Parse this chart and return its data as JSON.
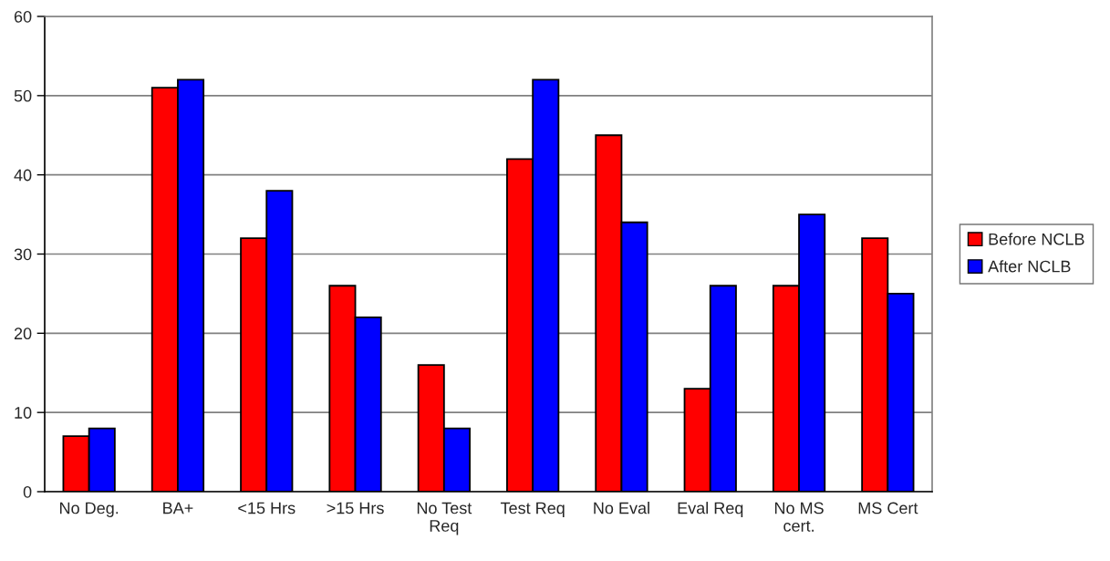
{
  "chart_data": {
    "type": "bar",
    "categories": [
      "No Deg.",
      "BA+",
      "<15 Hrs",
      ">15 Hrs",
      "No Test\nReq",
      "Test Req",
      "No Eval",
      "Eval Req",
      "No MS\ncert.",
      "MS Cert"
    ],
    "series": [
      {
        "name": "Before NCLB",
        "color": "#ff0000",
        "values": [
          7,
          51,
          32,
          26,
          16,
          42,
          45,
          13,
          26,
          32
        ]
      },
      {
        "name": "After NCLB",
        "color": "#0000ff",
        "values": [
          8,
          52,
          38,
          22,
          8,
          52,
          34,
          26,
          35,
          25
        ]
      }
    ],
    "ylim": [
      0,
      60
    ],
    "yticks": [
      0,
      10,
      20,
      30,
      40,
      50,
      60
    ],
    "grid": "y",
    "legend": "right"
  }
}
